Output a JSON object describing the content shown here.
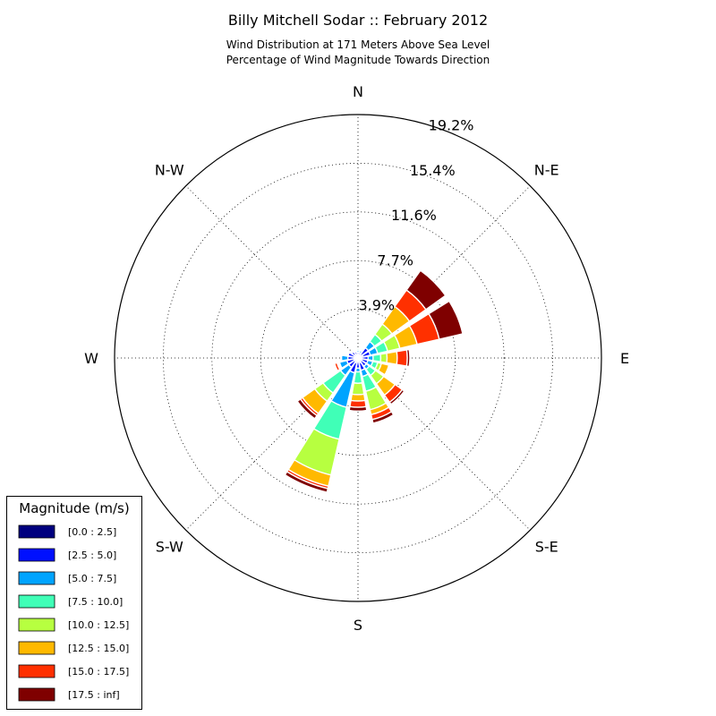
{
  "chart_data": {
    "type": "windrose",
    "title": "Billy Mitchell Sodar :: February 2012",
    "subtitle_lines": [
      "Wind Distribution at 171 Meters Above Sea Level",
      "Percentage of Wind Magnitude Towards Direction"
    ],
    "directions": [
      "N",
      "N-E",
      "E",
      "S-E",
      "S",
      "S-W",
      "W",
      "N-W"
    ],
    "radial_ticks": [
      "3.9%",
      "7.7%",
      "11.6%",
      "15.4%",
      "19.2%"
    ],
    "radial_tick_values": [
      3.85,
      7.7,
      11.55,
      15.4,
      19.25
    ],
    "rmax": 19.25,
    "grid": true,
    "legend": {
      "title": "Magnitude (m/s)",
      "placement": "bottom-left",
      "bins": [
        "[0.0 : 2.5]",
        "[2.5 : 5.0]",
        "[5.0 : 7.5]",
        "[7.5 : 10.0]",
        "[10.0 : 12.5]",
        "[12.5 : 15.0]",
        "[15.0 : 17.5]",
        "[17.5 : inf]"
      ],
      "colors": [
        "#00007f",
        "#0010ff",
        "#00a4ff",
        "#40ffb7",
        "#b7ff40",
        "#ffb900",
        "#ff3000",
        "#7f0000"
      ]
    },
    "sectors": [
      {
        "direction": 0.0,
        "cumulative": [
          0.25,
          0.45,
          0.6,
          0.7,
          0.7,
          0.7,
          0.7,
          0.7
        ]
      },
      {
        "direction": 22.5,
        "cumulative": [
          0.25,
          0.45,
          0.6,
          0.7,
          0.7,
          0.7,
          0.7,
          0.7
        ]
      },
      {
        "direction": 337.5,
        "cumulative": [
          0.25,
          0.5,
          0.6,
          0.6,
          0.6,
          0.6,
          0.6,
          0.6
        ]
      },
      {
        "direction": 45.0,
        "cumulative": [
          0.3,
          1.0,
          1.6,
          2.3,
          3.3,
          5.0,
          6.6,
          8.5
        ]
      },
      {
        "direction": 67.5,
        "cumulative": [
          0.4,
          1.0,
          1.6,
          2.4,
          3.4,
          4.8,
          6.6,
          8.5
        ]
      },
      {
        "direction": 90.0,
        "cumulative": [
          0.3,
          0.8,
          1.2,
          1.8,
          2.3,
          3.1,
          3.9,
          4.1
        ]
      },
      {
        "direction": 112.5,
        "cumulative": [
          0.3,
          0.8,
          1.2,
          1.6,
          1.9,
          2.5,
          2.5,
          2.5
        ]
      },
      {
        "direction": 135.0,
        "cumulative": [
          0.3,
          0.8,
          1.1,
          1.7,
          2.5,
          3.6,
          4.3,
          4.5
        ]
      },
      {
        "direction": 157.5,
        "cumulative": [
          0.4,
          1.0,
          1.5,
          2.7,
          4.2,
          4.6,
          5.0,
          5.3
        ]
      },
      {
        "direction": 180.0,
        "cumulative": [
          0.3,
          0.8,
          1.1,
          2.0,
          2.9,
          3.4,
          3.9,
          4.2
        ]
      },
      {
        "direction": 202.5,
        "cumulative": [
          0.4,
          1.2,
          4.0,
          6.6,
          9.5,
          10.4,
          10.6,
          10.9
        ]
      },
      {
        "direction": 225.0,
        "cumulative": [
          0.3,
          0.9,
          1.7,
          3.4,
          4.2,
          5.4,
          5.6,
          5.9
        ]
      },
      {
        "direction": 247.5,
        "cumulative": [
          0.3,
          0.9,
          1.5,
          1.5,
          1.6,
          1.7,
          1.9,
          1.9
        ]
      },
      {
        "direction": 270.0,
        "cumulative": [
          0.3,
          0.8,
          1.3,
          1.3,
          1.3,
          1.3,
          1.3,
          1.3
        ]
      },
      {
        "direction": 292.5,
        "cumulative": [
          0.3,
          0.8,
          0.8,
          0.8,
          0.8,
          0.8,
          0.8,
          0.8
        ]
      },
      {
        "direction": 315.0,
        "cumulative": [
          0.3,
          0.6,
          0.6,
          0.6,
          0.6,
          0.6,
          0.6,
          0.6
        ]
      }
    ]
  }
}
